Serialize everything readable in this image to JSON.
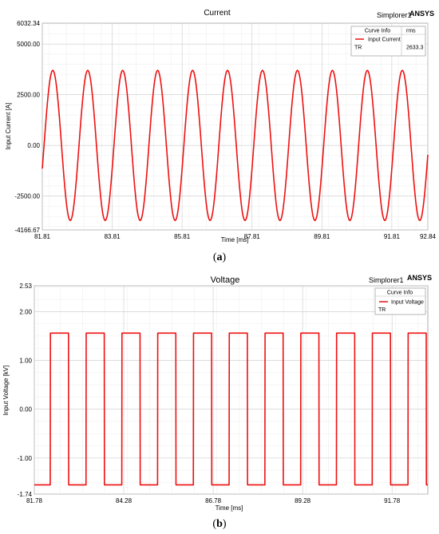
{
  "chart_data": [
    {
      "type": "line",
      "title": "Current",
      "brand_model": "Simplorer1",
      "brand_vendor": "ANSYS",
      "xlabel": "Time [ms]",
      "ylabel": "Input Current [A]",
      "xlim": [
        81.81,
        92.84
      ],
      "ylim": [
        -4166.67,
        6032.34
      ],
      "x_ticks": [
        "81.81",
        "83.81",
        "85.81",
        "87.81",
        "89.81",
        "91.81",
        "92.84"
      ],
      "y_ticks": [
        "6032.34",
        "5000.00",
        "2500.00",
        "0.00",
        "-2500.00",
        "-4166.67"
      ],
      "y_tick_values": [
        6032.34,
        5000,
        2500,
        0,
        -2500,
        -4166.67
      ],
      "x_tick_values": [
        81.81,
        83.81,
        85.81,
        87.81,
        89.81,
        91.81,
        92.84
      ],
      "grid": true,
      "legend_position": "top-right",
      "legend": {
        "header": "Curve Info",
        "column": "rms",
        "entries": [
          {
            "name": "Input Current",
            "group": "TR",
            "value": "2633.3",
            "color": "#ee1111"
          }
        ]
      },
      "series": [
        {
          "name": "Input Current",
          "color": "#ee1111",
          "waveform": "sine",
          "amplitude": 3700,
          "period_ms": 1.0,
          "zero_crossing_ms": 81.86,
          "dead_band": 40
        }
      ]
    },
    {
      "type": "line",
      "title": "Voltage",
      "brand_model": "Simplorer1",
      "brand_vendor": "ANSYS",
      "xlabel": "Time [ms]",
      "ylabel": "Input Voltage [kV]",
      "xlim": [
        81.78,
        92.78
      ],
      "ylim": [
        -1.74,
        2.53
      ],
      "x_ticks": [
        "81.78",
        "84.28",
        "86.78",
        "89.28",
        "91.78"
      ],
      "x_tick_values": [
        81.78,
        84.28,
        86.78,
        89.28,
        91.78
      ],
      "y_ticks": [
        "2.53",
        "2.00",
        "1.00",
        "0.00",
        "-1.00",
        "-1.74"
      ],
      "y_tick_values": [
        2.53,
        2.0,
        1.0,
        0.0,
        -1.0,
        -1.74
      ],
      "grid": true,
      "legend_position": "top-right",
      "legend": {
        "header": "Curve Info",
        "entries": [
          {
            "name": "Input Voltage",
            "group": "TR",
            "color": "#ee1111"
          }
        ]
      },
      "series": [
        {
          "name": "Input Voltage",
          "color": "#ee1111",
          "waveform": "square",
          "high": 1.56,
          "low": -1.55,
          "period_ms": 1.0,
          "rise_ms": 82.23,
          "fall_ms": 82.74
        }
      ]
    }
  ],
  "captions": [
    {
      "open": "(",
      "letter": "a",
      "close": ")"
    },
    {
      "open": "(",
      "letter": "b",
      "close": ")"
    }
  ]
}
